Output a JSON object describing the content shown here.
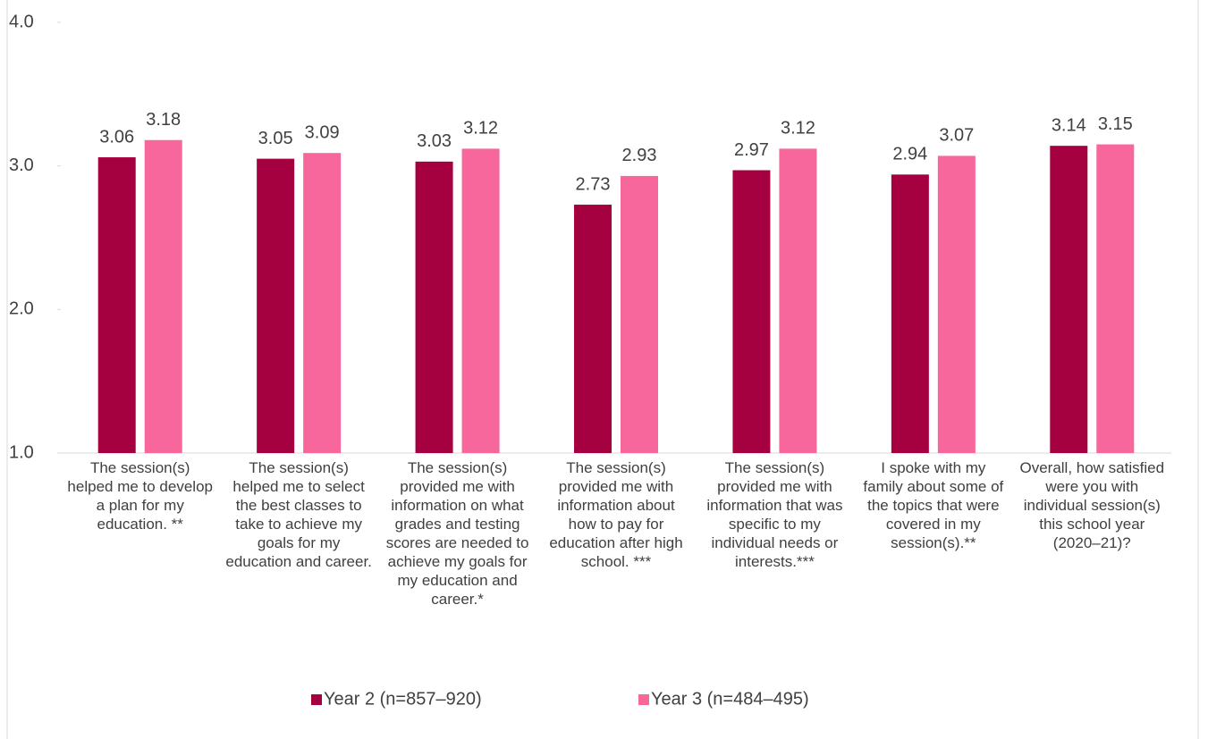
{
  "chart_data": {
    "type": "bar",
    "categories": [
      "The session(s) helped me to develop a plan for my education. **",
      "The session(s) helped me to select the best classes to take to achieve my goals for my education and career.",
      "The session(s) provided me with information on what grades and testing scores are needed to achieve my goals for my education and career.*",
      "The session(s) provided me with information about how to pay for education after high school. ***",
      "The session(s) provided me with information that was specific to my individual needs or interests.***",
      "I spoke with my family about some of the topics that were covered in my session(s).**",
      "Overall, how satisfied were you with individual session(s) this school year (2020–21)?"
    ],
    "series": [
      {
        "name": "Year 2 (n=857–920)",
        "color": "#a50040",
        "values": [
          3.06,
          3.05,
          3.03,
          2.73,
          2.97,
          2.94,
          3.14
        ]
      },
      {
        "name": "Year 3 (n=484–495)",
        "color": "#f7679b",
        "values": [
          3.18,
          3.09,
          3.12,
          2.93,
          3.12,
          3.07,
          3.15
        ]
      }
    ],
    "ylim": [
      1,
      4
    ],
    "yticks": [
      {
        "value": 1,
        "label": "1.0"
      },
      {
        "value": 2,
        "label": "2.0"
      },
      {
        "value": 3,
        "label": "3.0"
      },
      {
        "value": 4,
        "label": "4.0"
      }
    ],
    "legend": "bottom"
  }
}
